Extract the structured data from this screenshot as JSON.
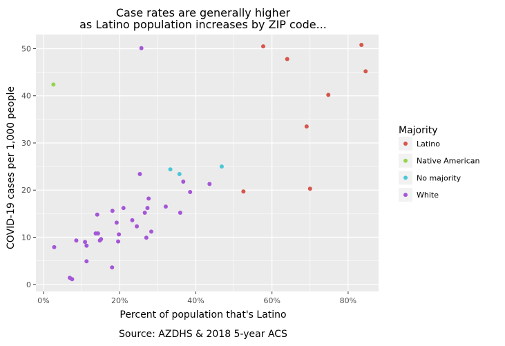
{
  "chart_data": {
    "type": "scatter",
    "title_lines": [
      "Case rates are generally higher",
      "as Latino population increases by ZIP code..."
    ],
    "xlabel": "Percent of population that's Latino",
    "ylabel": "COVID-19 cases per 1,000 people",
    "caption": "Source: AZDHS & 2018 5-year ACS",
    "xlim": [
      -0.02,
      0.88
    ],
    "ylim": [
      -1.5,
      53
    ],
    "x_ticks": [
      {
        "value": 0.0,
        "label": "0%"
      },
      {
        "value": 0.2,
        "label": "20%"
      },
      {
        "value": 0.4,
        "label": "40%"
      },
      {
        "value": 0.6,
        "label": "60%"
      },
      {
        "value": 0.8,
        "label": "80%"
      }
    ],
    "y_ticks": [
      {
        "value": 0,
        "label": "0"
      },
      {
        "value": 10,
        "label": "10"
      },
      {
        "value": 20,
        "label": "20"
      },
      {
        "value": 30,
        "label": "30"
      },
      {
        "value": 40,
        "label": "40"
      },
      {
        "value": 50,
        "label": "50"
      }
    ],
    "legend": {
      "title": "Majority",
      "position": "right",
      "entries": [
        {
          "name": "Latino",
          "color": "#d5574b"
        },
        {
          "name": "Native American",
          "color": "#97d44e"
        },
        {
          "name": "No majority",
          "color": "#4dc6d6"
        },
        {
          "name": "White",
          "color": "#a356d6"
        }
      ]
    },
    "series": [
      {
        "name": "Latino",
        "color": "#d5574b",
        "points": [
          {
            "x": 0.577,
            "y": 50.5
          },
          {
            "x": 0.835,
            "y": 50.8
          },
          {
            "x": 0.846,
            "y": 45.2
          },
          {
            "x": 0.64,
            "y": 47.8
          },
          {
            "x": 0.748,
            "y": 40.2
          },
          {
            "x": 0.691,
            "y": 33.5
          },
          {
            "x": 0.7,
            "y": 20.3
          },
          {
            "x": 0.525,
            "y": 19.7
          }
        ]
      },
      {
        "name": "Native American",
        "color": "#97d44e",
        "points": [
          {
            "x": 0.026,
            "y": 42.4
          }
        ]
      },
      {
        "name": "No majority",
        "color": "#4dc6d6",
        "points": [
          {
            "x": 0.333,
            "y": 24.4
          },
          {
            "x": 0.357,
            "y": 23.4
          },
          {
            "x": 0.468,
            "y": 25.0
          }
        ]
      },
      {
        "name": "White",
        "color": "#a356d6",
        "points": [
          {
            "x": 0.257,
            "y": 50.1
          },
          {
            "x": 0.253,
            "y": 23.4
          },
          {
            "x": 0.367,
            "y": 21.8
          },
          {
            "x": 0.436,
            "y": 21.3
          },
          {
            "x": 0.385,
            "y": 19.6
          },
          {
            "x": 0.276,
            "y": 18.2
          },
          {
            "x": 0.321,
            "y": 16.5
          },
          {
            "x": 0.21,
            "y": 16.2
          },
          {
            "x": 0.273,
            "y": 16.2
          },
          {
            "x": 0.181,
            "y": 15.6
          },
          {
            "x": 0.359,
            "y": 15.2
          },
          {
            "x": 0.266,
            "y": 15.2
          },
          {
            "x": 0.141,
            "y": 14.8
          },
          {
            "x": 0.233,
            "y": 13.6
          },
          {
            "x": 0.192,
            "y": 13.1
          },
          {
            "x": 0.245,
            "y": 12.3
          },
          {
            "x": 0.283,
            "y": 11.2
          },
          {
            "x": 0.137,
            "y": 10.8
          },
          {
            "x": 0.143,
            "y": 10.8
          },
          {
            "x": 0.198,
            "y": 10.6
          },
          {
            "x": 0.27,
            "y": 9.9
          },
          {
            "x": 0.151,
            "y": 9.6
          },
          {
            "x": 0.148,
            "y": 9.3
          },
          {
            "x": 0.086,
            "y": 9.3
          },
          {
            "x": 0.196,
            "y": 9.1
          },
          {
            "x": 0.109,
            "y": 9.0
          },
          {
            "x": 0.113,
            "y": 8.2
          },
          {
            "x": 0.028,
            "y": 7.9
          },
          {
            "x": 0.113,
            "y": 4.9
          },
          {
            "x": 0.18,
            "y": 3.6
          },
          {
            "x": 0.069,
            "y": 1.4
          },
          {
            "x": 0.075,
            "y": 1.1
          }
        ]
      }
    ]
  }
}
